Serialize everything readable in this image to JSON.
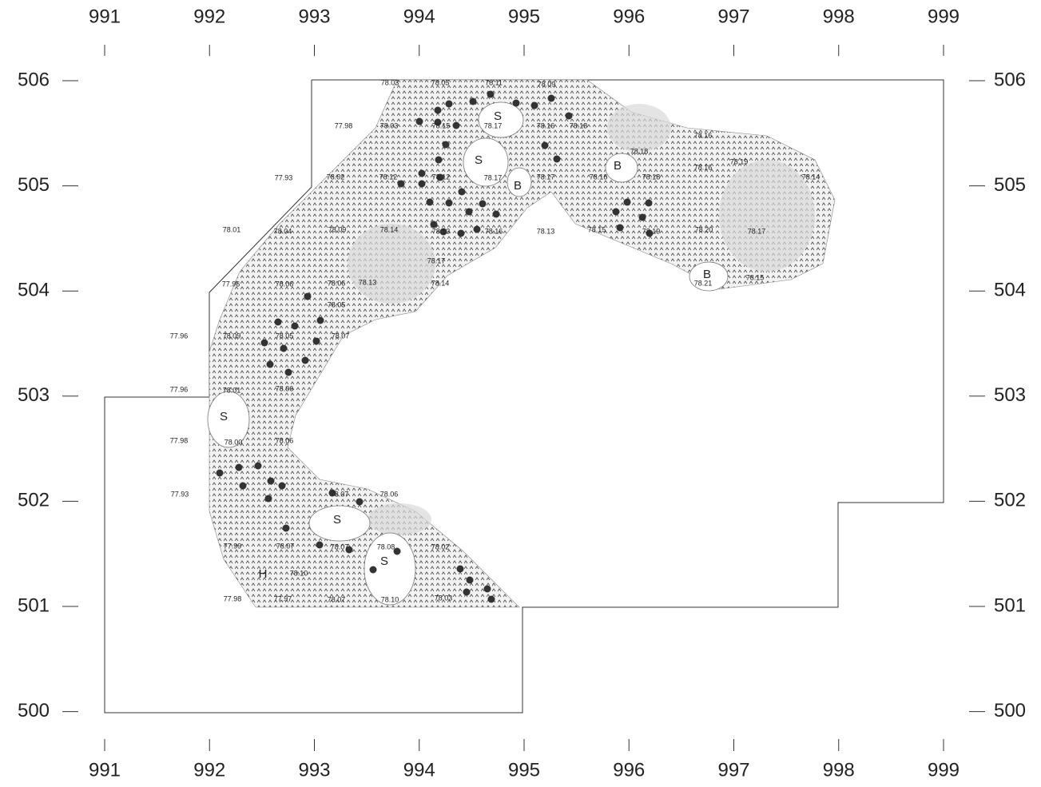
{
  "x_ticks": [
    991,
    992,
    993,
    994,
    995,
    996,
    997,
    998,
    999
  ],
  "y_ticks": [
    506,
    505,
    504,
    503,
    502,
    501,
    500
  ],
  "symbols": [
    "S",
    "S",
    "S",
    "S",
    "S",
    "B",
    "B",
    "B",
    "H"
  ],
  "elevations": [
    "78.03",
    "78.05",
    "78.11",
    "78.09",
    "77.98",
    "78.03",
    "78.15",
    "78.17",
    "78.16",
    "78.18",
    "78.16",
    "78.18",
    "78.19",
    "78.16",
    "77.93",
    "78.02",
    "78.12",
    "78.12",
    "78.17",
    "78.17",
    "78.16",
    "78.18",
    "78.14",
    "78.01",
    "78.04",
    "78.09",
    "78.14",
    "78.13",
    "78.16",
    "78.13",
    "78.15",
    "78.19",
    "78.20",
    "78.17",
    "78.17",
    "77.96",
    "78.06",
    "78.06",
    "78.13",
    "78.14",
    "78.21",
    "78.15",
    "78.05",
    "77.96",
    "78.09",
    "78.05",
    "78.07",
    "77.96",
    "78.01",
    "78.06",
    "77.98",
    "78.00",
    "78.06",
    "77.93",
    "78.07",
    "78.06",
    "77.99",
    "78.07",
    "78.07",
    "78.08",
    "78.02",
    "78.10",
    "77.98",
    "77.97",
    "78.07",
    "78.10",
    "78.03"
  ]
}
